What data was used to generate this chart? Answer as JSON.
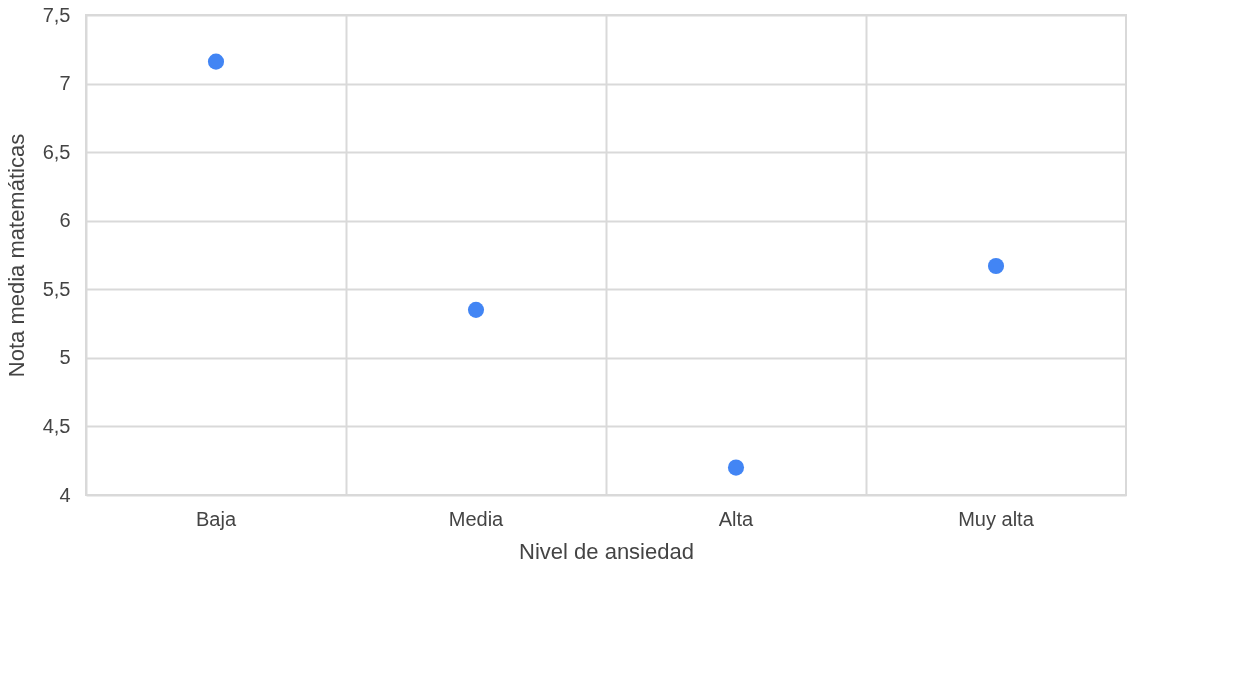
{
  "chart_data": {
    "type": "scatter",
    "xlabel": "Nivel de ansiedad",
    "ylabel": "Nota media matemáticas",
    "categories": [
      "Baja",
      "Media",
      "Alta",
      "Muy alta"
    ],
    "series": [
      {
        "color": "#4285f4",
        "values": [
          7.16,
          5.35,
          4.2,
          5.67
        ]
      }
    ],
    "ylim": [
      4,
      7.5
    ],
    "yticks": [
      {
        "value": 4,
        "label": "4"
      },
      {
        "value": 4.5,
        "label": "4,5"
      },
      {
        "value": 5,
        "label": "5"
      },
      {
        "value": 5.5,
        "label": "5,5"
      },
      {
        "value": 6,
        "label": "6"
      },
      {
        "value": 6.5,
        "label": "6,5"
      },
      {
        "value": 7,
        "label": "7"
      },
      {
        "value": 7.5,
        "label": "7,5"
      }
    ],
    "grid": true,
    "marker": "circle",
    "legend": false
  }
}
